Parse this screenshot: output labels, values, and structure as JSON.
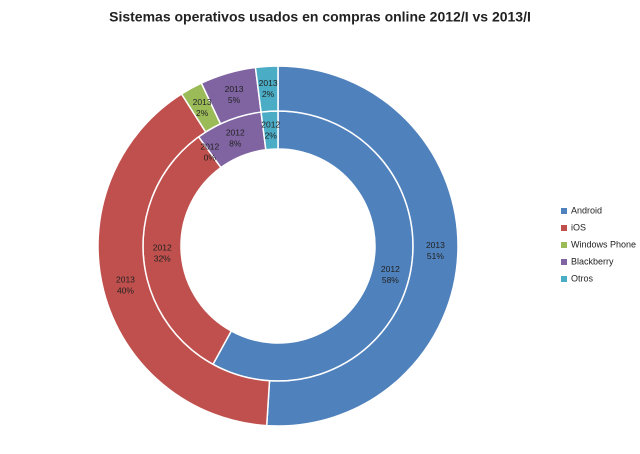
{
  "chart_data": {
    "type": "donut",
    "title": "Sistemas operativos usados en compras online 2012/I vs 2013/I",
    "categories": [
      "Android",
      "iOS",
      "Windows Phone",
      "Blackberry",
      "Otros"
    ],
    "colors": [
      "#4f81bd",
      "#c0504d",
      "#9bbb59",
      "#8064a2",
      "#4bacc6"
    ],
    "series": [
      {
        "name": "2012",
        "values": [
          58,
          32,
          0,
          8,
          2
        ],
        "value_labels": [
          "58%",
          "32%",
          "0%",
          "8%",
          "2%"
        ]
      },
      {
        "name": "2013",
        "values": [
          51,
          40,
          2,
          5,
          2
        ],
        "value_labels": [
          "51%",
          "40%",
          "2%",
          "5%",
          "2%"
        ]
      }
    ],
    "legend": "right"
  }
}
